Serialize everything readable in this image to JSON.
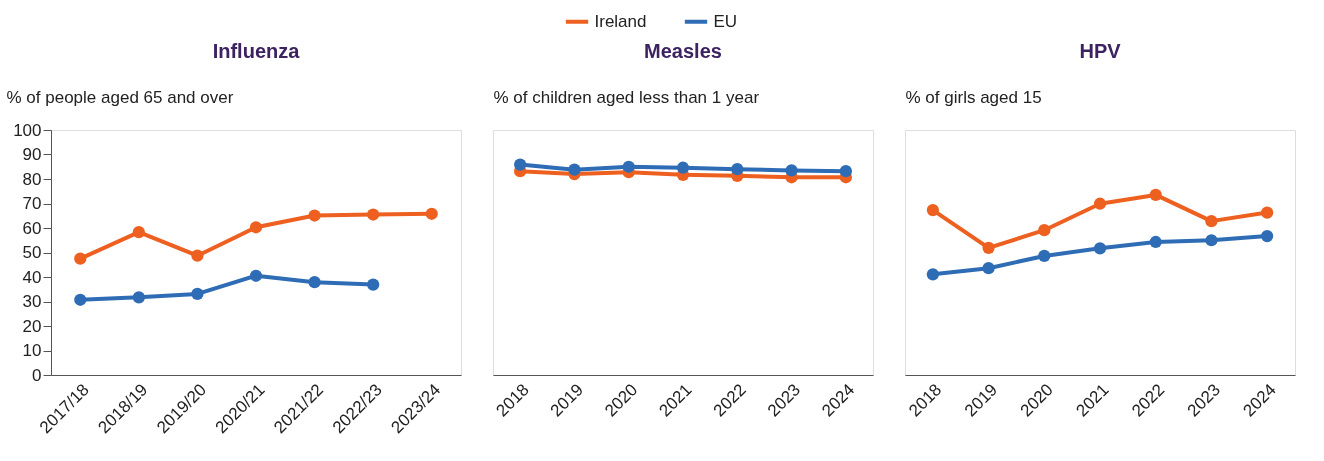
{
  "chart_data": [
    {
      "type": "line",
      "title": "Influenza",
      "ylabel": "% of people aged 65 and over",
      "categories": [
        "2017/18",
        "2018/19",
        "2019/20",
        "2020/21",
        "2021/22",
        "2022/23",
        "2023/24"
      ],
      "ylim": [
        0,
        100
      ],
      "yticks": [
        0,
        10,
        20,
        30,
        40,
        50,
        60,
        70,
        80,
        90,
        100
      ],
      "grid": false,
      "marker": "circle",
      "legend": "top",
      "series": [
        {
          "name": "Ireland",
          "color": "#ee6020",
          "values": [
            47.5,
            58.3,
            48.7,
            60.3,
            65.1,
            65.5,
            65.8
          ]
        },
        {
          "name": "EU",
          "color": "#2e6db5",
          "values": [
            30.7,
            31.7,
            33.1,
            40.5,
            37.9,
            36.9,
            null
          ]
        }
      ]
    },
    {
      "type": "line",
      "title": "Measles",
      "ylabel": "% of children aged less than 1 year",
      "categories": [
        "2018",
        "2019",
        "2020",
        "2021",
        "2022",
        "2023",
        "2024"
      ],
      "ylim": [
        0,
        100
      ],
      "tick_labels": "x",
      "grid": false,
      "marker": "circle",
      "series": [
        {
          "name": "Ireland",
          "color": "#ee6020",
          "values": [
            83.2,
            82.0,
            82.8,
            81.7,
            81.3,
            80.7,
            80.7
          ]
        },
        {
          "name": "EU",
          "color": "#2e6db5",
          "values": [
            85.9,
            83.8,
            85.0,
            84.6,
            84.0,
            83.5,
            83.2
          ]
        }
      ]
    },
    {
      "type": "line",
      "title": "HPV",
      "ylabel": "% of girls aged 15",
      "categories": [
        "2018",
        "2019",
        "2020",
        "2021",
        "2022",
        "2023",
        "2024"
      ],
      "ylim": [
        0,
        100
      ],
      "tick_labels": "x",
      "grid": false,
      "marker": "circle",
      "series": [
        {
          "name": "Ireland",
          "color": "#ee6020",
          "values": [
            67.3,
            51.9,
            59.1,
            69.9,
            73.5,
            62.8,
            66.3
          ]
        },
        {
          "name": "EU",
          "color": "#2e6db5",
          "values": [
            41.1,
            43.6,
            48.6,
            51.7,
            54.3,
            55.0,
            56.7
          ]
        }
      ]
    }
  ]
}
